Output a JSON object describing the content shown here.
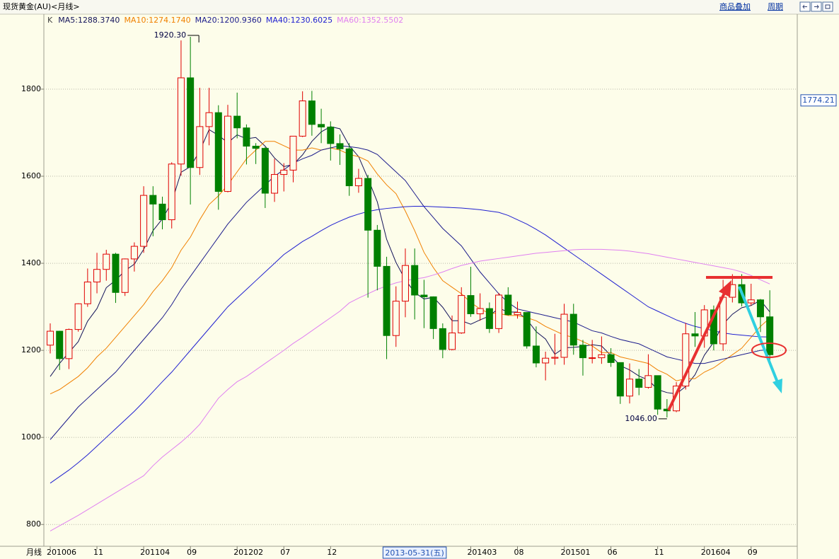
{
  "toolbar": {
    "title": "现货黄金(AU)<月线>",
    "overlay": "商品叠加",
    "period": "周期"
  },
  "chart_data": {
    "type": "candlestick",
    "legend_prefix": "K",
    "period_label": "月线",
    "crosshair_date": "2013-05-31(五)",
    "price_marker": {
      "value": 1774.21,
      "label": "1774.21"
    },
    "high_label": "1920.30",
    "low_label": "1046.00",
    "up_color": "#e00000",
    "down_color": "#008000",
    "ylim": [
      750,
      1969
    ],
    "yticks": [
      800,
      1000,
      1200,
      1400,
      1600,
      1800
    ],
    "grid": true,
    "categories": [
      "201006",
      null,
      null,
      null,
      null,
      "11",
      null,
      null,
      null,
      null,
      "201104",
      null,
      null,
      null,
      null,
      "09",
      null,
      null,
      null,
      null,
      "201202",
      null,
      null,
      null,
      null,
      "07",
      null,
      null,
      null,
      null,
      "12",
      null,
      null,
      null,
      null,
      null,
      null,
      null,
      null,
      null,
      null,
      null,
      null,
      null,
      null,
      "201403",
      null,
      null,
      null,
      null,
      "08",
      null,
      null,
      null,
      null,
      "201501",
      null,
      null,
      null,
      null,
      "06",
      null,
      null,
      null,
      null,
      "11",
      null,
      null,
      null,
      null,
      "201604",
      null,
      null,
      null,
      null,
      "09",
      null,
      null
    ],
    "open": [
      1212,
      1244,
      1181,
      1248,
      1307,
      1357,
      1386,
      1421,
      1333,
      1410,
      1439,
      1556,
      1536,
      1500,
      1628,
      1826,
      1620,
      1714,
      1746,
      1565,
      1738,
      1711,
      1669,
      1664,
      1561,
      1604,
      1614,
      1692,
      1773,
      1719,
      1713,
      1675,
      1663,
      1578,
      1595,
      1476,
      1393,
      1234,
      1313,
      1395,
      1327,
      1323,
      1250,
      1202,
      1240,
      1326,
      1284,
      1296,
      1250,
      1327,
      1282,
      1287,
      1210,
      1171,
      1182,
      1184,
      1283,
      1212,
      1183,
      1183,
      1190,
      1172,
      1095,
      1134,
      1115,
      1142,
      1065,
      1061,
      1118,
      1238,
      1233,
      1293,
      1215,
      1322,
      1351,
      1309,
      1316,
      1277
    ],
    "high": [
      1262,
      1245,
      1250,
      1308,
      1388,
      1424,
      1431,
      1424,
      1411,
      1448,
      1577,
      1577,
      1553,
      1632,
      1912,
      1920.3,
      1803,
      1803,
      1763,
      1764,
      1792,
      1719,
      1676,
      1667,
      1640,
      1630,
      1692,
      1795,
      1796,
      1755,
      1726,
      1696,
      1676,
      1617,
      1603,
      1488,
      1415,
      1347,
      1434,
      1434,
      1362,
      1324,
      1262,
      1280,
      1345,
      1392,
      1331,
      1310,
      1332,
      1345,
      1312,
      1287,
      1255,
      1197,
      1238,
      1307,
      1307,
      1224,
      1224,
      1232,
      1205,
      1172,
      1170,
      1157,
      1191,
      1142,
      1088,
      1127,
      1263,
      1288,
      1304,
      1303,
      1362,
      1375,
      1375,
      1353,
      1318,
      1338
    ],
    "low": [
      1193,
      1155,
      1157,
      1243,
      1300,
      1331,
      1360,
      1309,
      1325,
      1381,
      1424,
      1462,
      1478,
      1480,
      1601,
      1535,
      1603,
      1671,
      1523,
      1563,
      1687,
      1627,
      1628,
      1527,
      1541,
      1565,
      1586,
      1690,
      1693,
      1676,
      1636,
      1626,
      1555,
      1562,
      1321,
      1338,
      1180,
      1208,
      1276,
      1271,
      1251,
      1226,
      1182,
      1200,
      1238,
      1277,
      1268,
      1240,
      1240,
      1280,
      1273,
      1204,
      1161,
      1131,
      1167,
      1167,
      1190,
      1142,
      1170,
      1169,
      1162,
      1077,
      1078,
      1097,
      1112,
      1052,
      1046,
      1058,
      1110,
      1208,
      1206,
      1200,
      1199,
      1310,
      1301,
      1303,
      1242,
      1171
    ],
    "close": [
      1244,
      1181,
      1248,
      1307,
      1357,
      1386,
      1421,
      1333,
      1410,
      1439,
      1556,
      1536,
      1500,
      1628,
      1826,
      1620,
      1714,
      1746,
      1565,
      1738,
      1711,
      1669,
      1664,
      1561,
      1604,
      1614,
      1692,
      1773,
      1719,
      1713,
      1675,
      1663,
      1578,
      1595,
      1476,
      1393,
      1234,
      1313,
      1395,
      1327,
      1323,
      1250,
      1202,
      1240,
      1326,
      1284,
      1296,
      1250,
      1327,
      1282,
      1287,
      1210,
      1171,
      1182,
      1184,
      1283,
      1212,
      1183,
      1183,
      1190,
      1172,
      1095,
      1134,
      1115,
      1142,
      1065,
      1061,
      1118,
      1238,
      1233,
      1293,
      1215,
      1322,
      1351,
      1309,
      1316,
      1277,
      1190
    ],
    "ma_series": [
      {
        "name": "MA5:1288.3740",
        "color": "#14145a",
        "values": [
          1140,
          1170,
          1195,
          1220,
          1267,
          1296,
          1344,
          1361,
          1383,
          1398,
          1432,
          1475,
          1502,
          1540,
          1609,
          1622,
          1658,
          1707,
          1694,
          1677,
          1695,
          1686,
          1689,
          1669,
          1642,
          1622,
          1627,
          1649,
          1680,
          1702,
          1714,
          1709,
          1670,
          1645,
          1595,
          1541,
          1455,
          1402,
          1362,
          1333,
          1318,
          1322,
          1299,
          1268,
          1268,
          1260,
          1270,
          1279,
          1297,
          1288,
          1288,
          1271,
          1243,
          1226,
          1191,
          1206,
          1207,
          1209,
          1213,
          1210,
          1188,
          1165,
          1155,
          1141,
          1132,
          1110,
          1103,
          1100,
          1117,
          1144,
          1189,
          1219,
          1260,
          1283,
          1298,
          1303,
          1315,
          1288.374
        ]
      },
      {
        "name": "MA10:1274.1740",
        "color": "#f08000",
        "values": [
          1100,
          1110,
          1125,
          1140,
          1160,
          1185,
          1205,
          1230,
          1255,
          1280,
          1305,
          1335,
          1360,
          1390,
          1430,
          1460,
          1500,
          1535,
          1555,
          1580,
          1610,
          1640,
          1660,
          1680,
          1680,
          1670,
          1660,
          1660,
          1665,
          1660,
          1665,
          1660,
          1650,
          1645,
          1635,
          1605,
          1580,
          1560,
          1520,
          1475,
          1425,
          1390,
          1360,
          1345,
          1330,
          1310,
          1295,
          1285,
          1285,
          1280,
          1280,
          1275,
          1268,
          1255,
          1245,
          1235,
          1230,
          1220,
          1210,
          1195,
          1195,
          1185,
          1180,
          1175,
          1170,
          1155,
          1145,
          1130,
          1135,
          1135,
          1150,
          1160,
          1175,
          1190,
          1205,
          1230,
          1255,
          1274.174
        ]
      },
      {
        "name": "MA20:1200.9360",
        "color": "#1c1c8c",
        "values": [
          995,
          1020,
          1045,
          1070,
          1090,
          1110,
          1130,
          1150,
          1175,
          1200,
          1225,
          1250,
          1275,
          1305,
          1340,
          1370,
          1400,
          1430,
          1460,
          1490,
          1515,
          1540,
          1560,
          1580,
          1600,
          1615,
          1630,
          1640,
          1648,
          1660,
          1665,
          1670,
          1668,
          1665,
          1660,
          1650,
          1630,
          1610,
          1590,
          1560,
          1530,
          1505,
          1480,
          1460,
          1440,
          1410,
          1380,
          1355,
          1330,
          1310,
          1295,
          1290,
          1285,
          1280,
          1275,
          1270,
          1265,
          1255,
          1245,
          1240,
          1232,
          1225,
          1220,
          1215,
          1205,
          1195,
          1185,
          1180,
          1175,
          1170,
          1170,
          1175,
          1180,
          1185,
          1190,
          1195,
          1200,
          1200.936
        ]
      },
      {
        "name": "MA40:1230.6025",
        "color": "#2020d0",
        "values": [
          895,
          910,
          925,
          942,
          960,
          980,
          1000,
          1020,
          1040,
          1060,
          1082,
          1105,
          1128,
          1150,
          1175,
          1200,
          1225,
          1250,
          1275,
          1300,
          1320,
          1340,
          1360,
          1380,
          1400,
          1420,
          1435,
          1450,
          1462,
          1475,
          1487,
          1497,
          1506,
          1513,
          1519,
          1523,
          1526,
          1528,
          1530,
          1531,
          1531,
          1530,
          1529,
          1528,
          1527,
          1525,
          1523,
          1520,
          1517,
          1510,
          1500,
          1490,
          1478,
          1465,
          1450,
          1435,
          1420,
          1405,
          1390,
          1375,
          1360,
          1345,
          1330,
          1315,
          1300,
          1290,
          1280,
          1270,
          1262,
          1255,
          1250,
          1245,
          1240,
          1237,
          1235,
          1233,
          1231,
          1230.6025
        ]
      },
      {
        "name": "MA60:1352.5502",
        "color": "#e080f0",
        "values": [
          785,
          797,
          809,
          821,
          834,
          847,
          860,
          873,
          886,
          899,
          912,
          935,
          955,
          972,
          989,
          1008,
          1030,
          1060,
          1090,
          1110,
          1128,
          1140,
          1155,
          1170,
          1185,
          1200,
          1216,
          1230,
          1245,
          1260,
          1275,
          1290,
          1309,
          1320,
          1330,
          1340,
          1348,
          1355,
          1360,
          1364,
          1367,
          1373,
          1380,
          1388,
          1395,
          1400,
          1405,
          1408,
          1411,
          1414,
          1417,
          1420,
          1423,
          1425,
          1427,
          1429,
          1431,
          1432,
          1432,
          1432,
          1431,
          1430,
          1428,
          1425,
          1422,
          1418,
          1414,
          1410,
          1406,
          1402,
          1398,
          1394,
          1390,
          1386,
          1380,
          1372,
          1362,
          1352.5502
        ]
      }
    ]
  }
}
